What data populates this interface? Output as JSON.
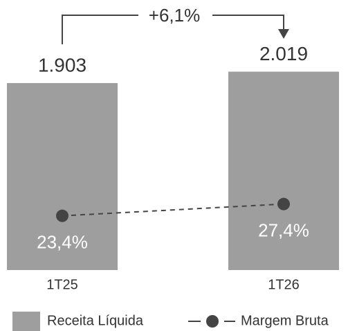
{
  "chart_data": {
    "type": "bar",
    "categories": [
      "1T25",
      "1T26"
    ],
    "series": [
      {
        "name": "Receita Líquida",
        "type": "bar",
        "color": "#9e9e9e",
        "values": [
          1903,
          2019
        ],
        "value_labels": [
          "1.903",
          "2.019"
        ]
      },
      {
        "name": "Margem Bruta",
        "type": "line",
        "axis": "y2",
        "color": "#444444",
        "values": [
          23.4,
          27.4
        ],
        "value_labels": [
          "23,4%",
          "27,4%"
        ]
      }
    ],
    "annotation": "+6,1%",
    "ylim": [
      0,
      2100
    ],
    "y2lim": [
      5,
      75
    ],
    "legend": "bottom"
  }
}
